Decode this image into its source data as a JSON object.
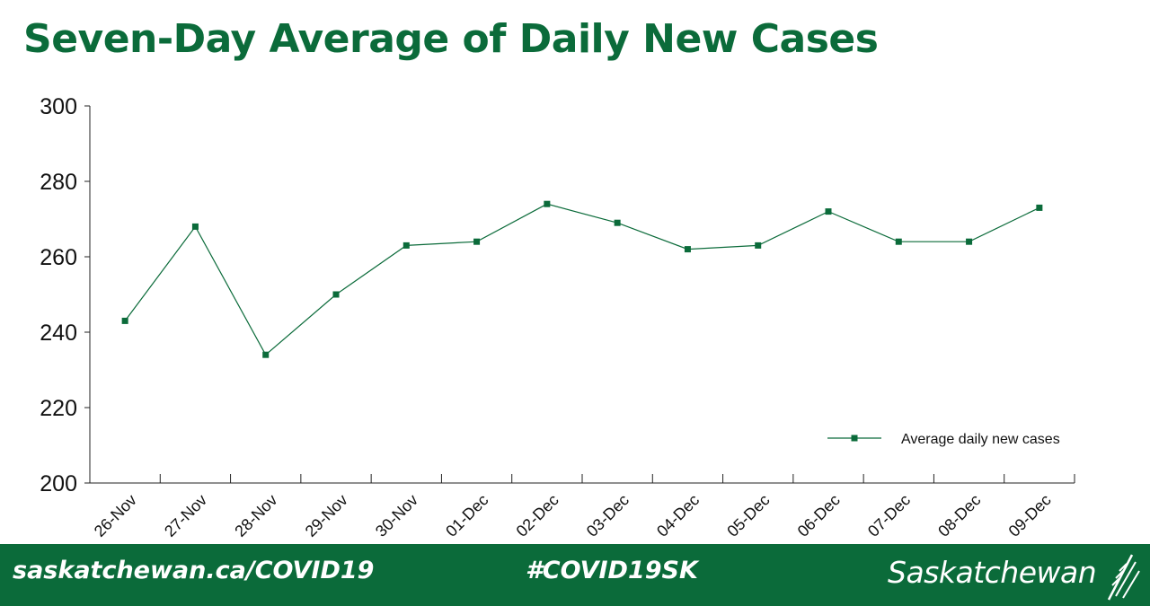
{
  "title": "Seven-Day Average of Daily New Cases",
  "chart_data": {
    "type": "line",
    "categories": [
      "26-Nov",
      "27-Nov",
      "28-Nov",
      "29-Nov",
      "30-Nov",
      "01-Dec",
      "02-Dec",
      "03-Dec",
      "04-Dec",
      "05-Dec",
      "06-Dec",
      "07-Dec",
      "08-Dec",
      "09-Dec"
    ],
    "series": [
      {
        "name": "Average daily new cases",
        "values": [
          243,
          268,
          234,
          250,
          263,
          264,
          274,
          269,
          262,
          263,
          272,
          264,
          264,
          273
        ]
      }
    ],
    "ylim": [
      200,
      300
    ],
    "yticks": [
      200,
      220,
      240,
      260,
      280,
      300
    ],
    "grid": false,
    "legend_position": "bottom-right",
    "series_color": "#0b6b3a"
  },
  "footer": {
    "url": "saskatchewan.ca/COVID19",
    "hashtag": "#COVID19SK",
    "brand": "Saskatchewan"
  }
}
